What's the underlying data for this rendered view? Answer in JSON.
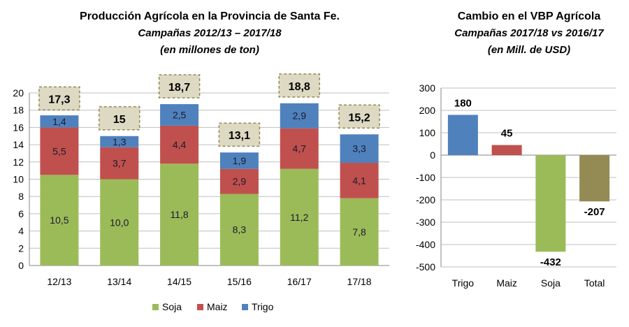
{
  "chart_data": [
    {
      "type": "bar",
      "stacked": true,
      "title": "Producción  Agrícola en la Provincia de Santa Fe.",
      "subtitle": "Campañas 2012/13 – 2017/18",
      "subtitle2": "(en millones de ton)",
      "categories": [
        "12/13",
        "13/14",
        "14/15",
        "15/16",
        "16/17",
        "17/18"
      ],
      "series": [
        {
          "name": "Soja",
          "color": "#9BBB59",
          "values": [
            10.5,
            10.0,
            11.8,
            8.3,
            11.2,
            7.8
          ],
          "labels": [
            "10,5",
            "10,0",
            "11,8",
            "8,3",
            "11,2",
            "7,8"
          ]
        },
        {
          "name": "Maiz",
          "color": "#C0504D",
          "values": [
            5.5,
            3.7,
            4.4,
            2.9,
            4.7,
            4.1
          ],
          "labels": [
            "5,5",
            "3,7",
            "4,4",
            "2,9",
            "4,7",
            "4,1"
          ]
        },
        {
          "name": "Trigo",
          "color": "#4F81BD",
          "values": [
            1.4,
            1.3,
            2.5,
            1.9,
            2.9,
            3.3
          ],
          "labels": [
            "1,4",
            "1,3",
            "2,5",
            "1,9",
            "2,9",
            "3,3"
          ]
        }
      ],
      "totals": [
        "17,3",
        "15",
        "18,7",
        "13,1",
        "18,8",
        "15,2"
      ],
      "totals_values": [
        17.3,
        15,
        18.7,
        13.1,
        18.8,
        15.2
      ],
      "ylim": [
        0,
        20
      ],
      "yticks": [
        "0",
        "2",
        "4",
        "6",
        "8",
        "10",
        "12",
        "14",
        "16",
        "18",
        "20"
      ],
      "grid": true,
      "legend": "bottom"
    },
    {
      "type": "bar",
      "title": "Cambio en el VBP Agrícola",
      "subtitle": "Campañas 2017/18  vs  2016/17",
      "subtitle2": "(en Mill. de USD)",
      "categories": [
        "Trigo",
        "Maiz",
        "Soja",
        "Total"
      ],
      "values": [
        180,
        45,
        -432,
        -207
      ],
      "labels": [
        "180",
        "45",
        "-432",
        "-207"
      ],
      "colors": [
        "#4F81BD",
        "#C0504D",
        "#9BBB59",
        "#948A54"
      ],
      "ylim": [
        -500,
        300
      ],
      "yticks": [
        "300",
        "200",
        "100",
        "0",
        "-100",
        "-200",
        "-300",
        "-400",
        "-500"
      ],
      "grid": true
    }
  ]
}
